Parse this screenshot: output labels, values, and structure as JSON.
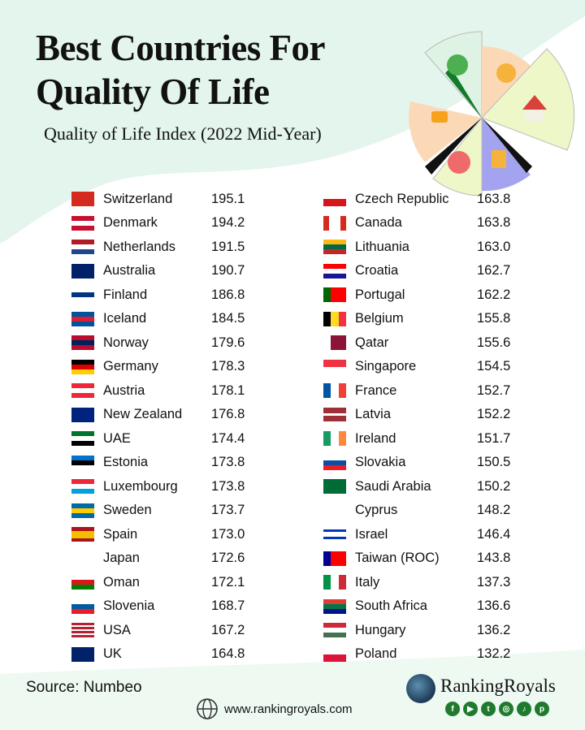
{
  "header": {
    "title_line1": "Best Countries For",
    "title_line2": "Quality Of Life",
    "subtitle": "Quality of Life Index (2022 Mid-Year)"
  },
  "colors": {
    "mint": "#e3f5ec",
    "text": "#111111",
    "social_green": "#1f7a2e"
  },
  "chart_data": {
    "type": "table",
    "title": "Quality of Life Index (2022 Mid-Year)",
    "rows": [
      {
        "country": "Switzerland",
        "value": "195.1",
        "flag": {
          "t": "v",
          "c": [
            "#d52b1e"
          ]
        }
      },
      {
        "country": "Denmark",
        "value": "194.2",
        "flag": {
          "t": "h",
          "c": [
            "#c8102e",
            "#ffffff",
            "#c8102e"
          ]
        }
      },
      {
        "country": "Netherlands",
        "value": "191.5",
        "flag": {
          "t": "h",
          "c": [
            "#ae1c28",
            "#ffffff",
            "#21468b"
          ]
        }
      },
      {
        "country": "Australia",
        "value": "190.7",
        "flag": {
          "t": "v",
          "c": [
            "#012169"
          ]
        }
      },
      {
        "country": "Finland",
        "value": "186.8",
        "flag": {
          "t": "h",
          "c": [
            "#ffffff",
            "#003580",
            "#ffffff"
          ]
        }
      },
      {
        "country": "Iceland",
        "value": "184.5",
        "flag": {
          "t": "h",
          "c": [
            "#02529c",
            "#dc1e35",
            "#02529c"
          ]
        }
      },
      {
        "country": "Norway",
        "value": "179.6",
        "flag": {
          "t": "h",
          "c": [
            "#ba0c2f",
            "#00205b",
            "#ba0c2f"
          ]
        }
      },
      {
        "country": "Germany",
        "value": "178.3",
        "flag": {
          "t": "h",
          "c": [
            "#000000",
            "#dd0000",
            "#ffce00"
          ]
        }
      },
      {
        "country": "Austria",
        "value": "178.1",
        "flag": {
          "t": "h",
          "c": [
            "#ed2939",
            "#ffffff",
            "#ed2939"
          ]
        }
      },
      {
        "country": "New Zealand",
        "value": "176.8",
        "flag": {
          "t": "v",
          "c": [
            "#00247d"
          ]
        }
      },
      {
        "country": "UAE",
        "value": "174.4",
        "flag": {
          "t": "h",
          "c": [
            "#00732f",
            "#ffffff",
            "#000000"
          ]
        }
      },
      {
        "country": "Estonia",
        "value": "173.8",
        "flag": {
          "t": "h",
          "c": [
            "#0072ce",
            "#000000",
            "#ffffff"
          ]
        }
      },
      {
        "country": "Luxembourg",
        "value": "173.8",
        "flag": {
          "t": "h",
          "c": [
            "#ed2939",
            "#ffffff",
            "#00a1de"
          ]
        }
      },
      {
        "country": "Sweden",
        "value": "173.7",
        "flag": {
          "t": "h",
          "c": [
            "#006aa7",
            "#fecc00",
            "#006aa7"
          ]
        }
      },
      {
        "country": "Spain",
        "value": "173.0",
        "flag": {
          "t": "h",
          "c": [
            "#aa151b",
            "#f1bf00",
            "#f1bf00",
            "#aa151b"
          ]
        }
      },
      {
        "country": "Japan",
        "value": "172.6",
        "flag": {
          "t": "v",
          "c": [
            "#ffffff"
          ]
        }
      },
      {
        "country": "Oman",
        "value": "172.1",
        "flag": {
          "t": "h",
          "c": [
            "#ffffff",
            "#db161b",
            "#008000"
          ]
        }
      },
      {
        "country": "Slovenia",
        "value": "168.7",
        "flag": {
          "t": "h",
          "c": [
            "#ffffff",
            "#005da4",
            "#ed1c24"
          ]
        }
      },
      {
        "country": "USA",
        "value": "167.2",
        "flag": {
          "t": "h",
          "c": [
            "#b22234",
            "#ffffff",
            "#b22234",
            "#ffffff",
            "#b22234",
            "#ffffff",
            "#b22234"
          ]
        }
      },
      {
        "country": "UK",
        "value": "164.8",
        "flag": {
          "t": "v",
          "c": [
            "#012169"
          ]
        }
      },
      {
        "country": "Czech Republic",
        "value": "163.8",
        "flag": {
          "t": "h",
          "c": [
            "#ffffff",
            "#d7141a"
          ]
        }
      },
      {
        "country": "Canada",
        "value": "163.8",
        "flag": {
          "t": "v",
          "c": [
            "#d52b1e",
            "#ffffff",
            "#ffffff",
            "#d52b1e"
          ]
        }
      },
      {
        "country": "Lithuania",
        "value": "163.0",
        "flag": {
          "t": "h",
          "c": [
            "#fdb913",
            "#006a44",
            "#c1272d"
          ]
        }
      },
      {
        "country": "Croatia",
        "value": "162.7",
        "flag": {
          "t": "h",
          "c": [
            "#ff0000",
            "#ffffff",
            "#171796"
          ]
        }
      },
      {
        "country": "Portugal",
        "value": "162.2",
        "flag": {
          "t": "v",
          "c": [
            "#006600",
            "#ff0000",
            "#ff0000"
          ]
        }
      },
      {
        "country": "Belgium",
        "value": "155.8",
        "flag": {
          "t": "v",
          "c": [
            "#000000",
            "#fdda24",
            "#ef3340"
          ]
        }
      },
      {
        "country": "Qatar",
        "value": "155.6",
        "flag": {
          "t": "v",
          "c": [
            "#ffffff",
            "#8a1538",
            "#8a1538"
          ]
        }
      },
      {
        "country": "Singapore",
        "value": "154.5",
        "flag": {
          "t": "h",
          "c": [
            "#ef3340",
            "#ffffff"
          ]
        }
      },
      {
        "country": "France",
        "value": "152.7",
        "flag": {
          "t": "v",
          "c": [
            "#0055a4",
            "#ffffff",
            "#ef4135"
          ]
        }
      },
      {
        "country": "Latvia",
        "value": "152.2",
        "flag": {
          "t": "h",
          "c": [
            "#9e3039",
            "#9e3039",
            "#ffffff",
            "#9e3039",
            "#9e3039"
          ]
        }
      },
      {
        "country": "Ireland",
        "value": "151.7",
        "flag": {
          "t": "v",
          "c": [
            "#169b62",
            "#ffffff",
            "#ff883e"
          ]
        }
      },
      {
        "country": "Slovakia",
        "value": "150.5",
        "flag": {
          "t": "h",
          "c": [
            "#ffffff",
            "#0b4ea2",
            "#ee1c25"
          ]
        }
      },
      {
        "country": "Saudi Arabia",
        "value": "150.2",
        "flag": {
          "t": "v",
          "c": [
            "#006c35"
          ]
        }
      },
      {
        "country": "Cyprus",
        "value": "148.2",
        "flag": {
          "t": "v",
          "c": [
            "#ffffff"
          ]
        }
      },
      {
        "country": "Israel",
        "value": "146.4",
        "flag": {
          "t": "h",
          "c": [
            "#ffffff",
            "#0038b8",
            "#ffffff",
            "#ffffff",
            "#0038b8",
            "#ffffff"
          ]
        }
      },
      {
        "country": "Taiwan (ROC)",
        "value": "143.8",
        "flag": {
          "t": "v",
          "c": [
            "#000095",
            "#fe0000",
            "#fe0000"
          ]
        }
      },
      {
        "country": "Italy",
        "value": "137.3",
        "flag": {
          "t": "v",
          "c": [
            "#009246",
            "#ffffff",
            "#ce2b37"
          ]
        }
      },
      {
        "country": "South Africa",
        "value": "136.6",
        "flag": {
          "t": "h",
          "c": [
            "#e03c31",
            "#007749",
            "#001489"
          ]
        }
      },
      {
        "country": "Hungary",
        "value": "136.2",
        "flag": {
          "t": "h",
          "c": [
            "#ce2939",
            "#ffffff",
            "#477050"
          ]
        }
      },
      {
        "country": "Poland",
        "value": "132.2",
        "flag": {
          "t": "h",
          "c": [
            "#ffffff",
            "#dc143c"
          ]
        }
      }
    ]
  },
  "footer": {
    "source": "Source: Numbeo",
    "website": "www.rankingroyals.com",
    "brand": "RankingRoyals",
    "socials": [
      {
        "icon": "facebook-icon",
        "glyph": "f"
      },
      {
        "icon": "youtube-icon",
        "glyph": "▶"
      },
      {
        "icon": "twitter-icon",
        "glyph": "t"
      },
      {
        "icon": "instagram-icon",
        "glyph": "◎"
      },
      {
        "icon": "tiktok-icon",
        "glyph": "♪"
      },
      {
        "icon": "pinterest-icon",
        "glyph": "p"
      }
    ]
  }
}
